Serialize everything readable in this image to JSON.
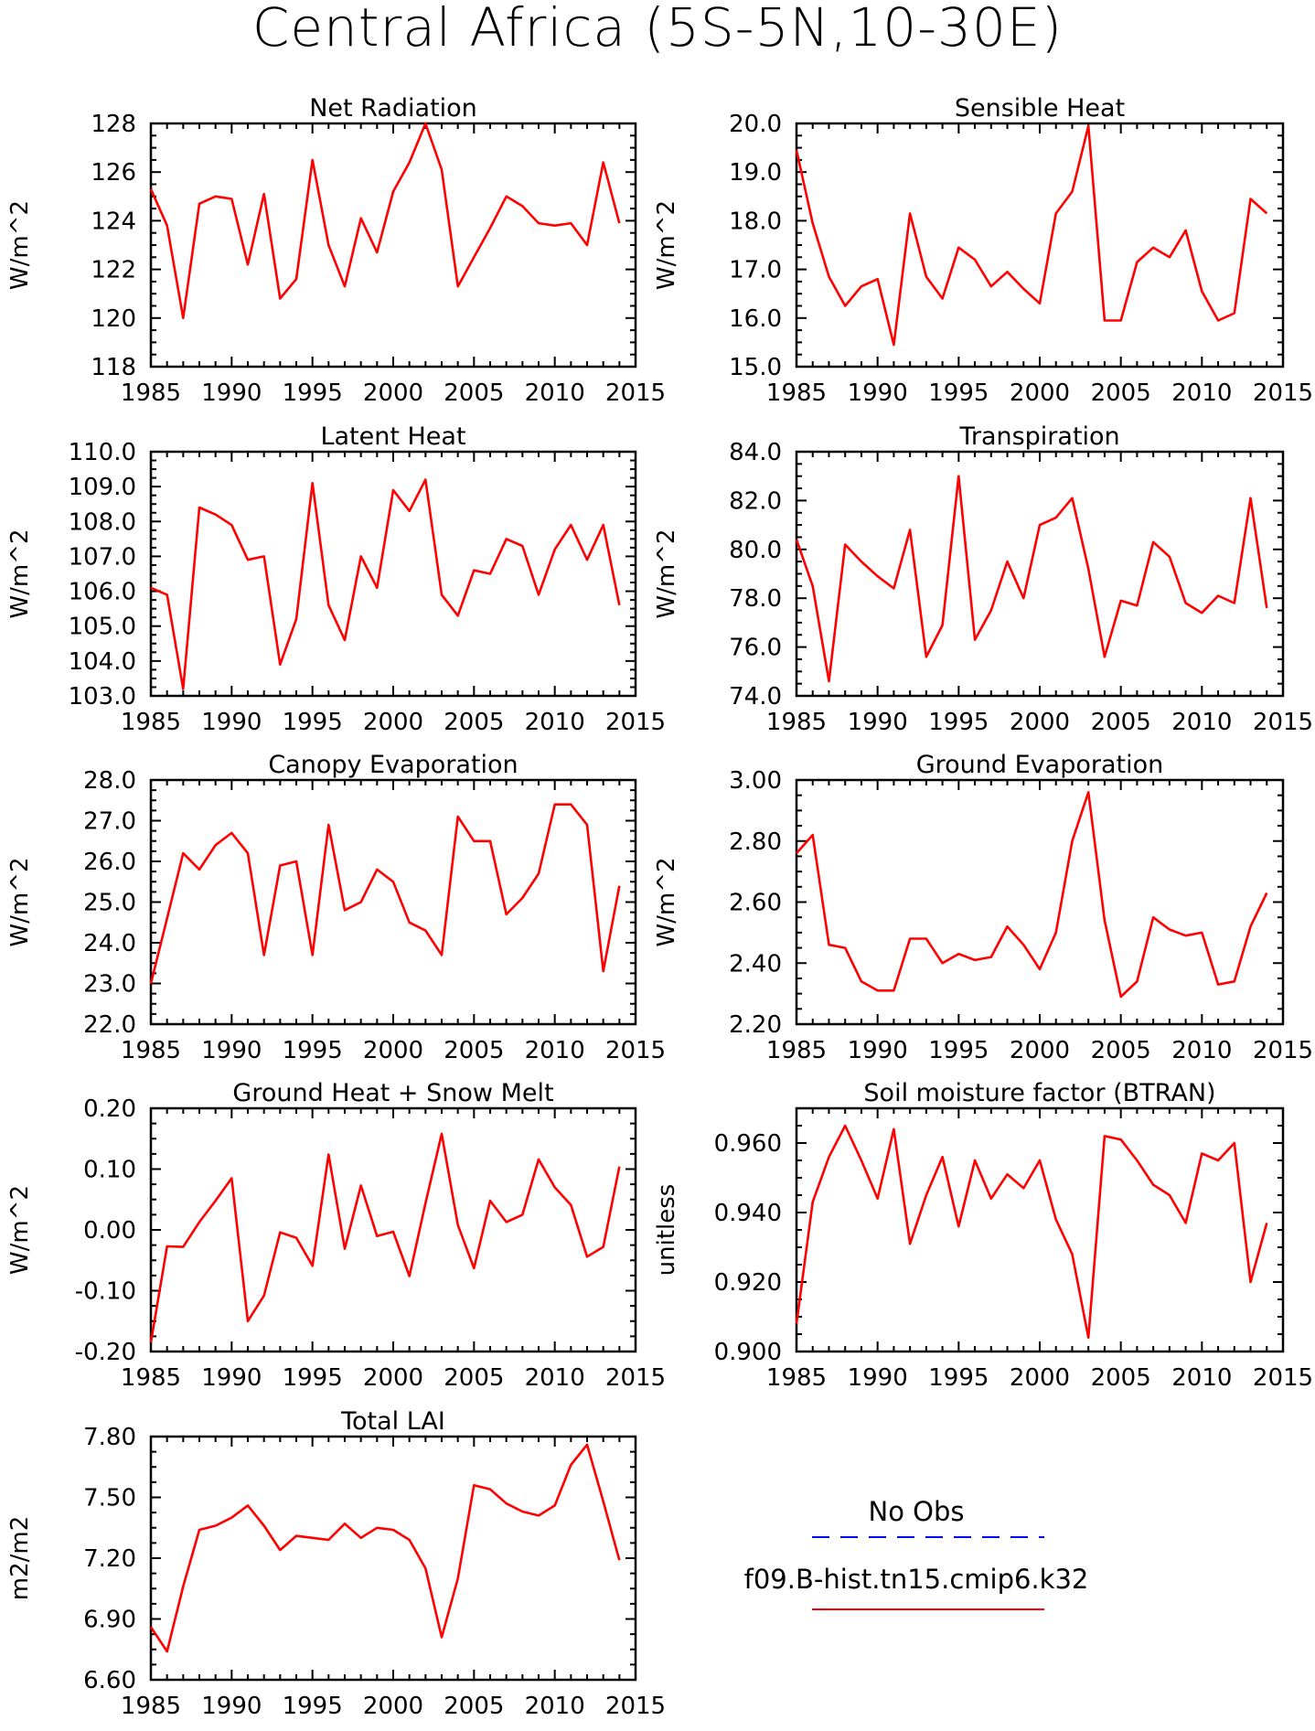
{
  "title": "Central Africa (5S-5N,10-30E)",
  "x_ticks": [
    1985,
    1990,
    1995,
    2000,
    2005,
    2010,
    2015
  ],
  "legend": {
    "obs_label": "No Obs",
    "obs_color": "#0000ff",
    "model_label": "f09.B-hist.tn15.cmip6.k32",
    "model_color": "#ff0000"
  },
  "chart_data": [
    {
      "type": "line",
      "title": "Net Radiation",
      "ylabel": "W/m^2",
      "xlim": [
        1985,
        2015
      ],
      "ylim": [
        118,
        128
      ],
      "yticks": [
        "118",
        "120",
        "122",
        "124",
        "126",
        "128"
      ],
      "series": [
        {
          "name": "f09.B-hist.tn15.cmip6.k32",
          "x_start": 1985,
          "values": [
            125.3,
            123.8,
            120.0,
            124.7,
            125.0,
            124.9,
            122.2,
            125.1,
            120.8,
            121.6,
            126.5,
            123.0,
            121.3,
            124.1,
            122.7,
            125.2,
            126.4,
            128.0,
            126.1,
            121.3,
            122.5,
            123.7,
            125.0,
            124.6,
            123.9,
            123.8,
            123.9,
            123.0,
            126.4,
            123.9
          ]
        }
      ]
    },
    {
      "type": "line",
      "title": "Sensible Heat",
      "ylabel": "W/m^2",
      "xlim": [
        1985,
        2015
      ],
      "ylim": [
        15.0,
        20.0
      ],
      "yticks": [
        "15.0",
        "16.0",
        "17.0",
        "18.0",
        "19.0",
        "20.0"
      ],
      "series": [
        {
          "name": "f09.B-hist.tn15.cmip6.k32",
          "x_start": 1985,
          "values": [
            19.45,
            17.95,
            16.85,
            16.25,
            16.65,
            16.8,
            15.45,
            18.15,
            16.85,
            16.4,
            17.45,
            17.2,
            16.65,
            16.95,
            16.6,
            16.3,
            18.15,
            18.6,
            19.95,
            15.95,
            15.95,
            17.15,
            17.45,
            17.25,
            17.8,
            16.55,
            15.95,
            16.1,
            18.45,
            18.15
          ]
        }
      ]
    },
    {
      "type": "line",
      "title": "Latent Heat",
      "ylabel": "W/m^2",
      "xlim": [
        1985,
        2015
      ],
      "ylim": [
        103.0,
        110.0
      ],
      "yticks": [
        "103.0",
        "104.0",
        "105.0",
        "106.0",
        "107.0",
        "108.0",
        "109.0",
        "110.0"
      ],
      "series": [
        {
          "name": "f09.B-hist.tn15.cmip6.k32",
          "x_start": 1985,
          "values": [
            106.1,
            105.9,
            103.2,
            108.4,
            108.2,
            107.9,
            106.9,
            107.0,
            103.9,
            105.2,
            109.1,
            105.6,
            104.6,
            107.0,
            106.1,
            108.9,
            108.3,
            109.2,
            105.9,
            105.3,
            106.6,
            106.5,
            107.5,
            107.3,
            105.9,
            107.2,
            107.9,
            106.9,
            107.9,
            105.6
          ]
        }
      ]
    },
    {
      "type": "line",
      "title": "Transpiration",
      "ylabel": "W/m^2",
      "xlim": [
        1985,
        2015
      ],
      "ylim": [
        74.0,
        84.0
      ],
      "yticks": [
        "74.0",
        "76.0",
        "78.0",
        "80.0",
        "82.0",
        "84.0"
      ],
      "series": [
        {
          "name": "f09.B-hist.tn15.cmip6.k32",
          "x_start": 1985,
          "values": [
            80.4,
            78.5,
            74.6,
            80.2,
            79.5,
            78.9,
            78.4,
            80.8,
            75.6,
            76.9,
            83.0,
            76.3,
            77.5,
            79.5,
            78.0,
            81.0,
            81.3,
            82.1,
            79.2,
            75.6,
            77.9,
            77.7,
            80.3,
            79.7,
            77.8,
            77.4,
            78.1,
            77.8,
            82.1,
            77.6
          ]
        }
      ]
    },
    {
      "type": "line",
      "title": "Canopy Evaporation",
      "ylabel": "W/m^2",
      "xlim": [
        1985,
        2015
      ],
      "ylim": [
        22.0,
        28.0
      ],
      "yticks": [
        "22.0",
        "23.0",
        "24.0",
        "25.0",
        "26.0",
        "27.0",
        "28.0"
      ],
      "series": [
        {
          "name": "f09.B-hist.tn15.cmip6.k32",
          "x_start": 1985,
          "values": [
            23.0,
            24.6,
            26.2,
            25.8,
            26.4,
            26.7,
            26.2,
            23.7,
            25.9,
            26.0,
            23.7,
            26.9,
            24.8,
            25.0,
            25.8,
            25.5,
            24.5,
            24.3,
            23.7,
            27.1,
            26.5,
            26.5,
            24.7,
            25.1,
            25.7,
            27.4,
            27.4,
            26.9,
            23.3,
            25.4
          ]
        }
      ]
    },
    {
      "type": "line",
      "title": "Ground Evaporation",
      "ylabel": "W/m^2",
      "xlim": [
        1985,
        2015
      ],
      "ylim": [
        2.2,
        3.0
      ],
      "yticks": [
        "2.20",
        "2.40",
        "2.60",
        "2.80",
        "3.00"
      ],
      "series": [
        {
          "name": "f09.B-hist.tn15.cmip6.k32",
          "x_start": 1985,
          "values": [
            2.76,
            2.82,
            2.46,
            2.45,
            2.34,
            2.31,
            2.31,
            2.48,
            2.48,
            2.4,
            2.43,
            2.41,
            2.42,
            2.52,
            2.46,
            2.38,
            2.5,
            2.8,
            2.96,
            2.54,
            2.29,
            2.34,
            2.55,
            2.51,
            2.49,
            2.5,
            2.33,
            2.34,
            2.52,
            2.63
          ]
        }
      ]
    },
    {
      "type": "line",
      "title": "Ground Heat + Snow Melt",
      "ylabel": "W/m^2",
      "xlim": [
        1985,
        2015
      ],
      "ylim": [
        -0.2,
        0.2
      ],
      "yticks": [
        "-0.20",
        "-0.10",
        "0.00",
        "0.10",
        "0.20"
      ],
      "series": [
        {
          "name": "f09.B-hist.tn15.cmip6.k32",
          "x_start": 1985,
          "values": [
            -0.185,
            -0.027,
            -0.028,
            0.013,
            0.048,
            0.085,
            -0.15,
            -0.108,
            -0.004,
            -0.013,
            -0.059,
            0.124,
            -0.031,
            0.073,
            -0.01,
            -0.003,
            -0.076,
            0.044,
            0.158,
            0.008,
            -0.063,
            0.048,
            0.013,
            0.025,
            0.116,
            0.07,
            0.041,
            -0.044,
            -0.028,
            0.104
          ]
        }
      ]
    },
    {
      "type": "line",
      "title": "Soil moisture factor (BTRAN)",
      "ylabel": "unitless",
      "xlim": [
        1985,
        2015
      ],
      "ylim": [
        0.9,
        0.97
      ],
      "yticks": [
        "0.900",
        "0.920",
        "0.940",
        "0.960"
      ],
      "series": [
        {
          "name": "f09.B-hist.tn15.cmip6.k32",
          "x_start": 1985,
          "values": [
            0.908,
            0.943,
            0.956,
            0.965,
            0.955,
            0.944,
            0.964,
            0.931,
            0.945,
            0.956,
            0.936,
            0.955,
            0.944,
            0.951,
            0.947,
            0.955,
            0.938,
            0.928,
            0.904,
            0.962,
            0.961,
            0.955,
            0.948,
            0.945,
            0.937,
            0.957,
            0.955,
            0.96,
            0.92,
            0.937
          ]
        }
      ]
    },
    {
      "type": "line",
      "title": "Total LAI",
      "ylabel": "m2/m2",
      "xlim": [
        1985,
        2015
      ],
      "ylim": [
        6.6,
        7.8
      ],
      "yticks": [
        "6.60",
        "6.90",
        "7.20",
        "7.50",
        "7.80"
      ],
      "series": [
        {
          "name": "f09.B-hist.tn15.cmip6.k32",
          "x_start": 1985,
          "values": [
            6.86,
            6.74,
            7.06,
            7.34,
            7.36,
            7.4,
            7.46,
            7.36,
            7.24,
            7.31,
            7.3,
            7.29,
            7.37,
            7.3,
            7.35,
            7.34,
            7.29,
            7.15,
            6.81,
            7.1,
            7.56,
            7.54,
            7.47,
            7.43,
            7.41,
            7.46,
            7.66,
            7.76,
            7.48,
            7.19
          ]
        }
      ]
    }
  ]
}
